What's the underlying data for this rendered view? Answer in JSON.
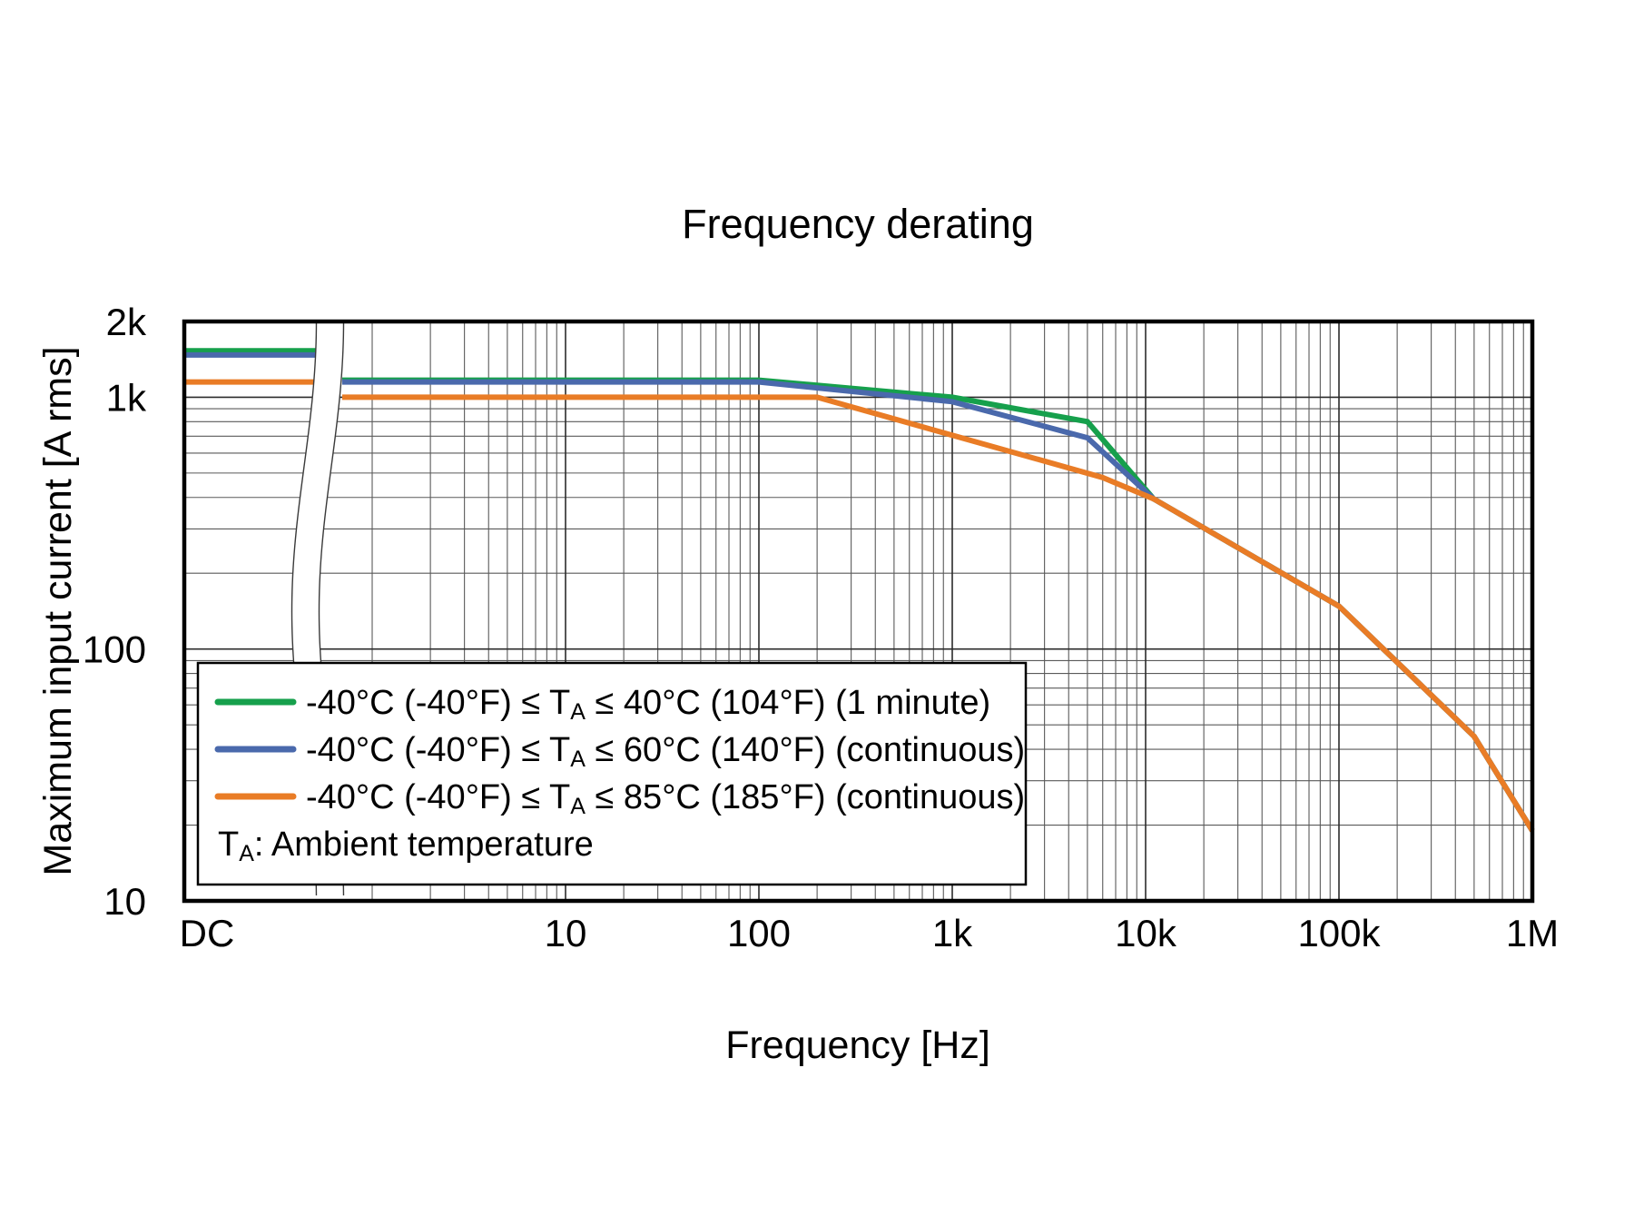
{
  "title": "Frequency derating",
  "chart_data": {
    "type": "line",
    "title": "Frequency derating",
    "xlabel": "Frequency [Hz]",
    "ylabel": "Maximum input current [A rms]",
    "x_scale": "log",
    "y_scale": "log",
    "x_range_hz": [
      1,
      1000000
    ],
    "y_range_a": [
      10,
      2000
    ],
    "x_axis_break": "wavy break between DC segment and logarithmic AC axis",
    "grid": "log major and minor gridlines on",
    "legend_position": "inside lower-left",
    "x_ticks": [
      {
        "label": "DC",
        "hz": null
      },
      {
        "label": "10",
        "hz": 10
      },
      {
        "label": "100",
        "hz": 100
      },
      {
        "label": "1k",
        "hz": 1000
      },
      {
        "label": "10k",
        "hz": 10000
      },
      {
        "label": "100k",
        "hz": 100000
      },
      {
        "label": "1M",
        "hz": 1000000
      }
    ],
    "y_ticks": [
      {
        "label": "2k",
        "amps": 2000
      },
      {
        "label": "1k",
        "amps": 1000
      },
      {
        "label": "100",
        "amps": 100
      },
      {
        "label": "10",
        "amps": 10
      }
    ],
    "series": [
      {
        "id": "ta40_1min",
        "color": "#16a04c",
        "label": {
          "pre": "-40°C (-40°F) ≤ T",
          "sub": "A",
          "post": " ≤ 40°C (104°F) (1 minute)"
        },
        "dc_amps": 1500,
        "points_hz_amps": [
          [
            0.7,
            1150
          ],
          [
            100,
            1150
          ],
          [
            1000,
            1000
          ],
          [
            5000,
            800
          ],
          [
            11000,
            395
          ],
          [
            100000,
            148
          ],
          [
            500000,
            45
          ],
          [
            1000000,
            19
          ]
        ]
      },
      {
        "id": "ta60_cont",
        "color": "#4a69ac",
        "label": {
          "pre": "-40°C (-40°F) ≤ T",
          "sub": "A",
          "post": " ≤ 60°C (140°F) (continuous)"
        },
        "dc_amps": 1500,
        "points_hz_amps": [
          [
            0.7,
            1150
          ],
          [
            100,
            1150
          ],
          [
            1000,
            960
          ],
          [
            5000,
            690
          ],
          [
            11000,
            395
          ],
          [
            100000,
            148
          ],
          [
            500000,
            45
          ],
          [
            1000000,
            19
          ]
        ]
      },
      {
        "id": "ta85_cont",
        "color": "#e97c26",
        "label": {
          "pre": "-40°C (-40°F) ≤ T",
          "sub": "A",
          "post": " ≤ 85°C (185°F) (continuous)"
        },
        "dc_amps": 1150,
        "points_hz_amps": [
          [
            0.7,
            1000
          ],
          [
            200,
            1000
          ],
          [
            6000,
            480
          ],
          [
            11000,
            395
          ],
          [
            100000,
            148
          ],
          [
            500000,
            45
          ],
          [
            1000000,
            19
          ]
        ]
      }
    ],
    "legend_note": {
      "pre": "T",
      "sub": "A",
      "post": ": Ambient temperature"
    }
  }
}
